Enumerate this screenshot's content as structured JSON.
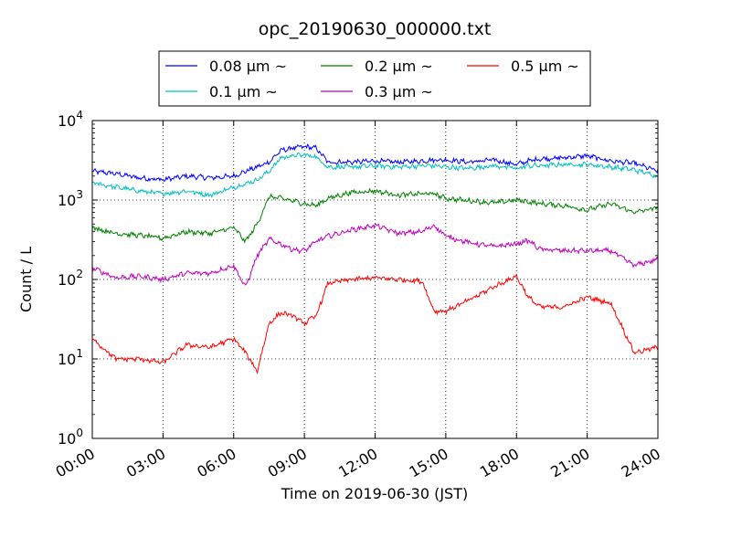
{
  "chart_data": {
    "type": "line",
    "title": "opc_20190630_000000.txt",
    "xlabel": "Time on 2019-06-30 (JST)",
    "ylabel": "Count / L",
    "xlim": [
      0,
      24
    ],
    "ylim": [
      1,
      10000
    ],
    "yscale": "log",
    "grid": true,
    "legend_position": "top-center",
    "x_ticks": [
      "00:00",
      "03:00",
      "06:00",
      "09:00",
      "12:00",
      "15:00",
      "18:00",
      "21:00",
      "24:00"
    ],
    "y_ticks": [
      {
        "base": "10",
        "exp": "0"
      },
      {
        "base": "10",
        "exp": "1"
      },
      {
        "base": "10",
        "exp": "2"
      },
      {
        "base": "10",
        "exp": "3"
      },
      {
        "base": "10",
        "exp": "4"
      }
    ],
    "x": [
      0,
      1,
      2,
      3,
      4,
      5,
      6,
      6.5,
      7,
      7.5,
      8,
      8.5,
      9,
      9.5,
      10,
      11,
      12,
      13,
      14,
      14.5,
      15,
      16,
      17,
      18,
      18.5,
      19,
      20,
      21,
      22,
      23,
      24
    ],
    "series": [
      {
        "name": "0.08 µm ~",
        "color": "#0000ff",
        "values": [
          2300,
          2150,
          1900,
          1800,
          2000,
          1900,
          2000,
          2300,
          2600,
          3000,
          4200,
          4500,
          4700,
          4500,
          3000,
          3000,
          3100,
          3000,
          3100,
          3200,
          3200,
          3000,
          3200,
          2800,
          3100,
          3300,
          3400,
          3600,
          3100,
          2900,
          2300
        ]
      },
      {
        "name": "0.1 µm ~",
        "color": "#00bfbf",
        "values": [
          1650,
          1450,
          1300,
          1200,
          1300,
          1150,
          1450,
          1600,
          1800,
          2300,
          3400,
          3600,
          3700,
          3500,
          2600,
          2600,
          2700,
          2600,
          2700,
          2700,
          2600,
          2500,
          2700,
          2500,
          2700,
          2700,
          2800,
          2800,
          2600,
          2400,
          2000
        ]
      },
      {
        "name": "0.2 µm ~",
        "color": "#008000",
        "values": [
          450,
          380,
          360,
          330,
          400,
          380,
          450,
          300,
          500,
          1100,
          1050,
          980,
          900,
          850,
          1050,
          1250,
          1300,
          1150,
          1200,
          1200,
          1050,
          980,
          920,
          1000,
          950,
          900,
          850,
          750,
          900,
          700,
          800
        ]
      },
      {
        "name": "0.3 µm ~",
        "color": "#bf00bf",
        "values": [
          140,
          105,
          110,
          100,
          120,
          120,
          150,
          80,
          200,
          320,
          280,
          240,
          230,
          300,
          350,
          420,
          480,
          380,
          400,
          480,
          350,
          290,
          260,
          280,
          310,
          240,
          230,
          230,
          230,
          150,
          180
        ]
      },
      {
        "name": "0.5 µm ~",
        "color": "#ff0000",
        "values": [
          18,
          10,
          10,
          9,
          15,
          14,
          18,
          12,
          7,
          28,
          38,
          35,
          28,
          35,
          90,
          100,
          105,
          100,
          95,
          40,
          40,
          55,
          80,
          110,
          60,
          45,
          45,
          60,
          50,
          12,
          14
        ]
      }
    ]
  }
}
